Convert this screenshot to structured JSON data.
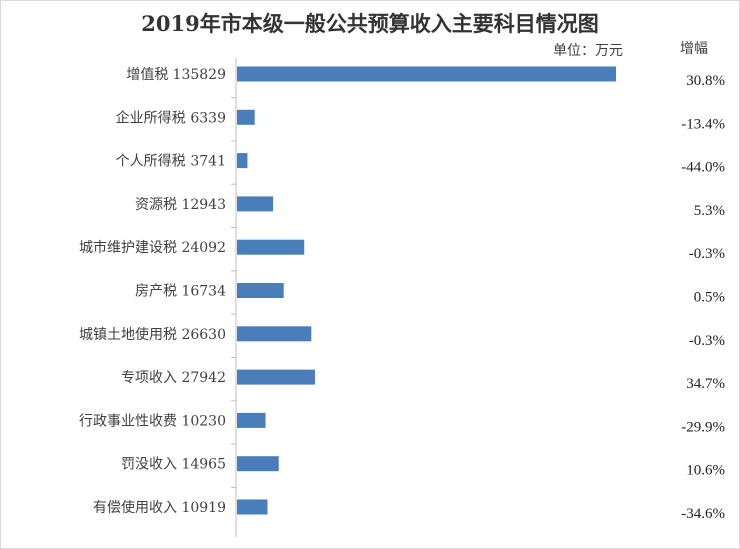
{
  "chart_data": {
    "type": "bar",
    "orientation": "horizontal",
    "title": "2019年市本级一般公共预算收入主要科目情况图",
    "unit": "单位：万元",
    "growth_header": "增幅",
    "categories": [
      "增值税",
      "企业所得税",
      "个人所得税",
      "资源税",
      "城市维护建设税",
      "房产税",
      "城镇土地使用税",
      "专项收入",
      "行政事业性收费",
      "罚没收入",
      "有偿使用收入"
    ],
    "values": [
      135829,
      6339,
      3741,
      12943,
      24092,
      16734,
      26630,
      27942,
      10230,
      14965,
      10919
    ],
    "growth": [
      "30.8%",
      "-13.4%",
      "-44.0%",
      "5.3%",
      "-0.3%",
      "0.5%",
      "-0.3%",
      "34.7%",
      "-29.9%",
      "10.6%",
      "-34.6%"
    ],
    "bar_color": "#4a7ebb"
  }
}
